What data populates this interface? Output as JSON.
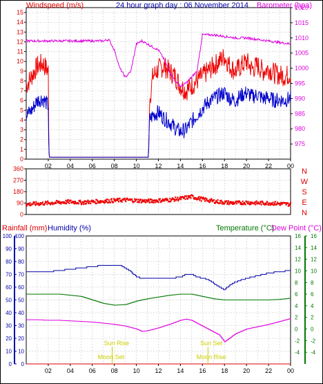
{
  "title": "24 hour graph day : 06 November 2014",
  "colors": {
    "wind_avg": "#0000cc",
    "wind_gust": "#ee0000",
    "barometer": "#dd00dd",
    "wind_dir": "#ee0000",
    "humidity": "#0000aa",
    "temperature": "#007700",
    "dew_point": "#dd00dd",
    "rainfall": "#dd0000",
    "sun": "#cccc00",
    "moon": "#cccc00",
    "grid": "#bbbbbb",
    "axis": "#000000"
  },
  "chart_data": [
    {
      "type": "line",
      "title": "24 hour graph day : 06 November 2014",
      "ylabel_left": "Windspeed (m/s)",
      "ylabel_right": "Barometer (hpa)",
      "ylim_left": [
        0,
        15.5
      ],
      "ylim_right": [
        970,
        1020
      ],
      "yticks_left": [
        "0",
        "1",
        "2",
        "3",
        "4",
        "5",
        "6",
        "7",
        "8",
        "9",
        "10",
        "11",
        "12",
        "13",
        "14",
        "15"
      ],
      "yticks_right": [
        "975",
        "980",
        "985",
        "990",
        "995",
        "1000",
        "1005",
        "1010",
        "1015",
        "1020"
      ],
      "xticks": [
        "02",
        "04",
        "06",
        "08",
        "10",
        "12",
        "14",
        "16",
        "18",
        "20",
        "22",
        "00"
      ],
      "x_range_hours": [
        0,
        24
      ],
      "grid": true,
      "series": [
        {
          "name": "gust",
          "axis": "left",
          "x": [
            0,
            0.5,
            1,
            1.5,
            2,
            2.05,
            2.1,
            11.1,
            11.2,
            11.5,
            12,
            12.5,
            13,
            13.5,
            14,
            14.5,
            15,
            15.5,
            16,
            16.5,
            17,
            17.5,
            18,
            18.5,
            19,
            19.5,
            20,
            20.5,
            21,
            21.5,
            22,
            22.5,
            23,
            23.5,
            24
          ],
          "values": [
            7.5,
            8.5,
            9.5,
            9.8,
            9.0,
            1.0,
            0.2,
            0.2,
            6.0,
            8.5,
            9.2,
            9.5,
            9.0,
            8.5,
            7.5,
            7.0,
            7.5,
            8.0,
            8.5,
            9.0,
            9.5,
            10.0,
            10.5,
            9.5,
            9.0,
            9.5,
            10.0,
            9.2,
            9.6,
            9.0,
            9.3,
            8.8,
            8.6,
            8.5,
            8.7
          ]
        },
        {
          "name": "average",
          "axis": "left",
          "x": [
            0,
            0.5,
            1,
            1.5,
            2,
            2.05,
            2.1,
            11.1,
            11.2,
            11.5,
            12,
            12.5,
            13,
            13.5,
            14,
            14.5,
            15,
            15.5,
            16,
            16.5,
            17,
            17.5,
            18,
            18.5,
            19,
            19.5,
            20,
            20.5,
            21,
            21.5,
            22,
            22.5,
            23,
            23.5,
            24
          ],
          "values": [
            4.5,
            5.0,
            6.0,
            6.2,
            5.5,
            1.0,
            0.2,
            0.2,
            4.0,
            4.5,
            4.8,
            4.2,
            3.8,
            3.2,
            2.8,
            3.0,
            3.8,
            4.5,
            5.2,
            5.8,
            6.2,
            6.5,
            6.8,
            6.2,
            6.0,
            6.5,
            6.8,
            6.4,
            6.6,
            6.2,
            6.3,
            6.0,
            6.1,
            6.0,
            6.3
          ]
        },
        {
          "name": "barometer",
          "axis": "right",
          "x": [
            0,
            1,
            2,
            3,
            4,
            5,
            6,
            7,
            7.5,
            8,
            8.5,
            9,
            9.5,
            10,
            10.5,
            11,
            11.5,
            12,
            12.5,
            13,
            13.5,
            14,
            14.5,
            15,
            15.5,
            16,
            17,
            18,
            19,
            20,
            21,
            22,
            23,
            24
          ],
          "values": [
            1009,
            1009,
            1009,
            1009,
            1009,
            1009,
            1009,
            1009,
            1009.5,
            1006,
            1000,
            997,
            999,
            1008,
            1009,
            1008,
            1007,
            1006,
            1003,
            999,
            996,
            994,
            995,
            997,
            999,
            1011,
            1011,
            1010.5,
            1010,
            1010,
            1009.5,
            1009,
            1008.5,
            1008
          ]
        }
      ]
    },
    {
      "type": "scatter",
      "ylabel_right": "N W S E N",
      "ylim": [
        0,
        360
      ],
      "yticks": [
        "0",
        "90",
        "180",
        "270",
        "360"
      ],
      "xticks": [
        "02",
        "04",
        "06",
        "08",
        "10",
        "12",
        "14",
        "16",
        "18",
        "20",
        "22",
        "00"
      ],
      "grid": true,
      "series": [
        {
          "name": "direction",
          "x": [
            0,
            1,
            2,
            3,
            4,
            5,
            6,
            7,
            8,
            9,
            10,
            11,
            12,
            13,
            14,
            15,
            16,
            17,
            18,
            19,
            20,
            21,
            22,
            23,
            24
          ],
          "values": [
            80,
            85,
            90,
            95,
            100,
            95,
            100,
            105,
            110,
            115,
            110,
            105,
            110,
            115,
            125,
            140,
            120,
            105,
            95,
            90,
            95,
            90,
            90,
            85,
            80
          ]
        }
      ]
    },
    {
      "type": "line",
      "ylabel_left": "Rainfall (mm)",
      "ylabel_left2": "Humidity (%)",
      "ylabel_right": "Temperature (°C)",
      "ylabel_right2": "Dew Point (°C)",
      "ylim_left": [
        0,
        100
      ],
      "ylim_right": [
        -6,
        16
      ],
      "yticks_left": [
        "0",
        "10",
        "20",
        "30",
        "40",
        "50",
        "60",
        "70",
        "80",
        "90",
        "100"
      ],
      "yticks_right": [
        "-4",
        "-2",
        "0",
        "2",
        "4",
        "6",
        "8",
        "10",
        "12",
        "14",
        "16"
      ],
      "xticks": [
        "02",
        "04",
        "06",
        "08",
        "10",
        "12",
        "14",
        "16",
        "18",
        "20",
        "22",
        "00"
      ],
      "grid": true,
      "annotations": [
        "Sun Rise",
        "Sun Set",
        "Moon Set",
        "Moon Rise"
      ],
      "series": [
        {
          "name": "Humidity",
          "axis": "left",
          "x": [
            0,
            1,
            2,
            3,
            4,
            5,
            6,
            7,
            8,
            8.5,
            9,
            9.5,
            10,
            10.5,
            11,
            12,
            13,
            14,
            14.5,
            15,
            15.5,
            16,
            16.5,
            17,
            17.5,
            18,
            18.5,
            19,
            20,
            21,
            22,
            23,
            24
          ],
          "values": [
            72,
            72,
            72,
            73,
            74,
            75,
            76,
            77,
            77,
            77,
            75,
            72,
            68,
            67,
            67,
            67,
            67,
            68,
            70,
            70,
            68,
            67,
            66,
            63,
            60,
            58,
            62,
            64,
            67,
            69,
            71,
            72,
            73
          ]
        },
        {
          "name": "Temperature",
          "axis": "right",
          "x": [
            0,
            1,
            2,
            3,
            4,
            5,
            6,
            7,
            8,
            9,
            10,
            11,
            12,
            13,
            14,
            15,
            16,
            17,
            18,
            19,
            20,
            21,
            22,
            23,
            24
          ],
          "values": [
            6,
            6,
            6,
            6,
            5.8,
            5.6,
            5,
            4.4,
            4.1,
            4.2,
            4.8,
            5.2,
            5.5,
            5.8,
            6,
            6,
            5.6,
            5.2,
            5.0,
            5.0,
            5.0,
            5.0,
            5.0,
            5.1,
            5.3
          ]
        },
        {
          "name": "Dew Point",
          "axis": "right",
          "x": [
            0,
            1,
            2,
            3,
            4,
            5,
            6,
            7,
            8,
            9,
            10,
            10.5,
            11,
            12,
            13,
            14,
            14.5,
            15,
            15.5,
            16,
            16.5,
            17,
            17.5,
            18,
            18.5,
            19,
            20,
            21,
            22,
            23,
            24
          ],
          "values": [
            1.6,
            1.6,
            1.5,
            1.5,
            1.4,
            1.3,
            1.2,
            1.0,
            0.8,
            0.5,
            0,
            -0.4,
            -0.3,
            0.2,
            0.8,
            1.5,
            1.7,
            1.5,
            1.0,
            0.5,
            0,
            -0.5,
            -1.0,
            -2.2,
            -1.5,
            -0.8,
            0,
            0.4,
            0.8,
            1.3,
            1.8
          ]
        },
        {
          "name": "Rainfall",
          "axis": "left",
          "x": [
            0,
            24
          ],
          "values": [
            0,
            0
          ]
        }
      ]
    }
  ]
}
